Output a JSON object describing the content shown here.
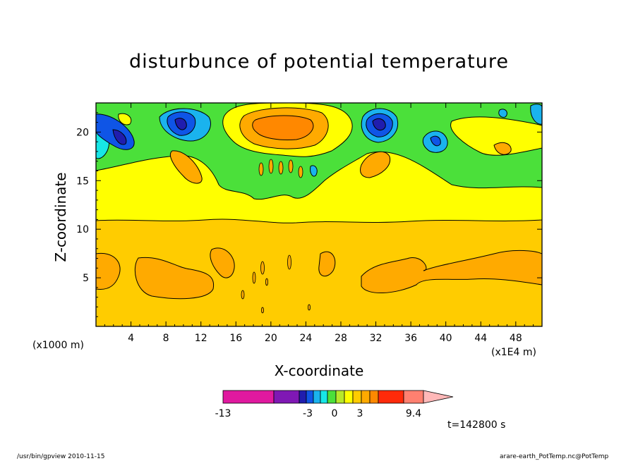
{
  "chart_data": {
    "type": "heatmap",
    "title": "disturbunce of potential temperature",
    "xlabel": "X-coordinate",
    "ylabel": "Z-coordinate",
    "x_unit_left": "(x1000 m)",
    "x_unit_right": "(x1E4 m)",
    "xlim": [
      0,
      51
    ],
    "ylim": [
      0,
      23
    ],
    "x_ticks": [
      4,
      8,
      12,
      16,
      20,
      24,
      28,
      32,
      36,
      40,
      44,
      48
    ],
    "y_ticks": [
      5,
      10,
      15,
      20
    ],
    "colorbar": {
      "colors": [
        "#e0199f",
        "#7f18b4",
        "#201dae",
        "#0f55e6",
        "#1ab3ee",
        "#17e6e6",
        "#4be03a",
        "#b8e82a",
        "#ffff00",
        "#ffcc00",
        "#ffaa00",
        "#ff8800",
        "#ff2a0a",
        "#ff8070",
        "#ffb8b8"
      ],
      "tick_labels": [
        "-13",
        "-3",
        "0",
        "3",
        "9.4"
      ]
    },
    "annotation": "t=142800 s"
  },
  "footer": {
    "left": "/usr/bin/gpview   2010-11-15",
    "right": "arare-earth_PotTemp.nc@PotTemp"
  }
}
